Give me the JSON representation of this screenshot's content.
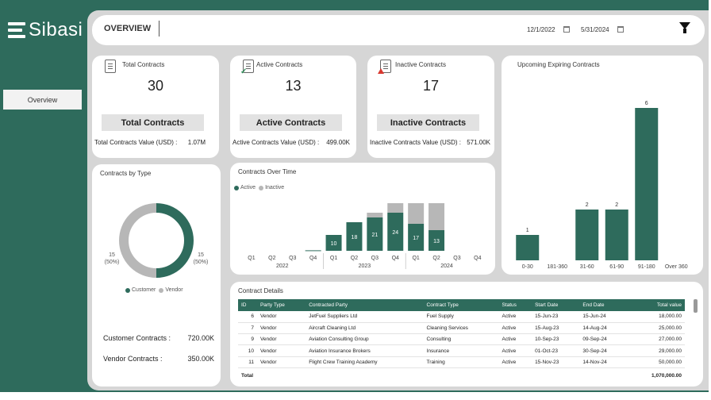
{
  "sidebar": {
    "brand": "Sibasi",
    "nav_button": "Overview"
  },
  "header": {
    "title": "OVERVIEW",
    "start_date": "12/1/2022",
    "end_date": "5/31/2024",
    "icons": [
      "calendar-icon",
      "filter-icon"
    ]
  },
  "kpis": {
    "total": {
      "title": "Total Contracts",
      "count": "30",
      "button": "Total Contracts",
      "value_label": "Total Contracts Value (USD) :",
      "value": "1.07M"
    },
    "active": {
      "title": "Active Contracts",
      "count": "13",
      "button": "Active Contracts",
      "value_label": "Active Contracts Value (USD) :",
      "value": "499.00K"
    },
    "inactive": {
      "title": "Inactive Contracts",
      "count": "17",
      "button": "Inactive Contracts",
      "value_label": "Inactive Contracts Value (USD) :",
      "value": "571.00K"
    }
  },
  "by_type": {
    "title": "Contracts by Type",
    "customer_summary_label": "Customer Contracts :",
    "customer_summary_value": "720.00K",
    "vendor_summary_label": "Vendor Contracts :",
    "vendor_summary_value": "350.00K"
  },
  "over_time": {
    "title": "Contracts Over Time"
  },
  "expiring": {
    "title": "Upcoming Expiring Contracts"
  },
  "details": {
    "title": "Contract Details",
    "columns": [
      "ID",
      "Party Type",
      "Contracted Party",
      "Contract Type",
      "Status",
      "Start Date",
      "End Date",
      "Total value"
    ],
    "rows": [
      [
        "6",
        "Vendor",
        "JetFuel Suppliers Ltd",
        "Fuel Supply",
        "Active",
        "15-Jun-23",
        "15-Jun-24",
        "18,000.00"
      ],
      [
        "7",
        "Vendor",
        "Aircraft Cleaning Ltd",
        "Cleaning Services",
        "Active",
        "15-Aug-23",
        "14-Aug-24",
        "25,000.00"
      ],
      [
        "9",
        "Vendor",
        "Aviation Consulting Group",
        "Consulting",
        "Active",
        "10-Sep-23",
        "09-Sep-24",
        "27,000.00"
      ],
      [
        "10",
        "Vendor",
        "Aviation Insurance Brokers",
        "Insurance",
        "Active",
        "01-Oct-23",
        "30-Sep-24",
        "29,000.00"
      ],
      [
        "11",
        "Vendor",
        "Flight Crew Training Academy",
        "Training",
        "Active",
        "15-Nov-23",
        "14-Nov-24",
        "50,000.00"
      ]
    ],
    "total_label": "Total",
    "total_value": "1,070,000.00"
  },
  "colors": {
    "brand": "#2e6b5c",
    "inactive": "#b7b7b7"
  },
  "chart_data": [
    {
      "type": "pie",
      "title": "Contracts by Type",
      "categories": [
        "Customer",
        "Vendor"
      ],
      "values": [
        15,
        15
      ],
      "data_labels": [
        "15\n(50%)",
        "15\n(50%)"
      ],
      "colors": [
        "#2e6b5c",
        "#b7b7b7"
      ],
      "legend_placement": "bottom",
      "donut": true
    },
    {
      "type": "bar",
      "stacked": true,
      "title": "Contracts Over Time",
      "categories": [
        "Q1",
        "Q2",
        "Q3",
        "Q4",
        "Q1",
        "Q2",
        "Q3",
        "Q4",
        "Q1",
        "Q2",
        "Q3",
        "Q4"
      ],
      "groups": [
        {
          "label": "2022",
          "start": 0,
          "count": 4
        },
        {
          "label": "2023",
          "start": 4,
          "count": 4
        },
        {
          "label": "2024",
          "start": 8,
          "count": 4
        }
      ],
      "series": [
        {
          "name": "Active",
          "values": [
            0,
            0,
            0,
            0.3,
            10,
            18,
            21,
            24,
            17,
            13,
            0,
            0
          ],
          "labels": [
            "",
            "",
            "",
            "",
            "10",
            "18",
            "21",
            "24",
            "17",
            "13",
            "",
            ""
          ]
        },
        {
          "name": "Inactive",
          "values": [
            0,
            0,
            0,
            0,
            0,
            0,
            3,
            6,
            13,
            17,
            0,
            0
          ]
        }
      ],
      "colors": [
        "#2e6b5c",
        "#b7b7b7"
      ],
      "ylim": [
        0,
        32
      ],
      "legend_placement": "top-left",
      "grid": false
    },
    {
      "type": "bar",
      "title": "Upcoming Expiring Contracts",
      "categories": [
        "0-30",
        "181-360",
        "31-60",
        "61-90",
        "91-180",
        "Over 360"
      ],
      "values": [
        1,
        0,
        2,
        2,
        6,
        0
      ],
      "labels": [
        "1",
        "",
        "2",
        "2",
        "6",
        ""
      ],
      "color": "#2e6b5c",
      "ylim": [
        0,
        7
      ],
      "grid": false
    }
  ]
}
